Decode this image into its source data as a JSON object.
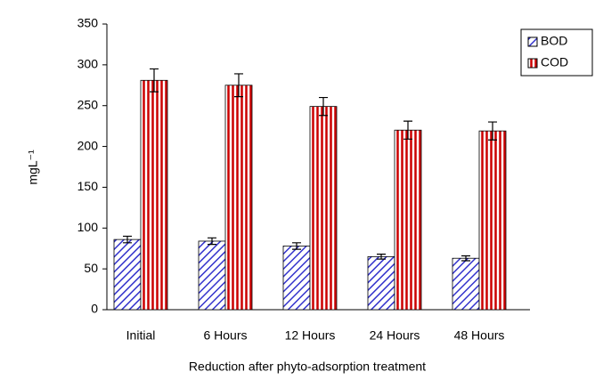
{
  "chart_data": {
    "type": "bar",
    "xlabel": "Reduction after phyto-adsorption treatment",
    "ylabel": "mgL⁻¹",
    "categories": [
      "Initial",
      "6 Hours",
      "12  Hours",
      "24  Hours",
      "48  Hours"
    ],
    "series": [
      {
        "name": "BOD",
        "color": "#3333cc",
        "values": [
          86,
          84,
          78,
          65,
          63
        ],
        "errors": [
          4,
          4,
          4,
          3,
          3
        ]
      },
      {
        "name": "COD",
        "color": "#cc0000",
        "values": [
          281,
          275,
          249,
          220,
          219
        ],
        "errors": [
          14,
          14,
          11,
          11,
          11
        ]
      }
    ],
    "ylim": [
      0,
      350
    ],
    "yticks": [
      0,
      50,
      100,
      150,
      200,
      250,
      300,
      350
    ],
    "grid": false,
    "legend": "upper right"
  }
}
